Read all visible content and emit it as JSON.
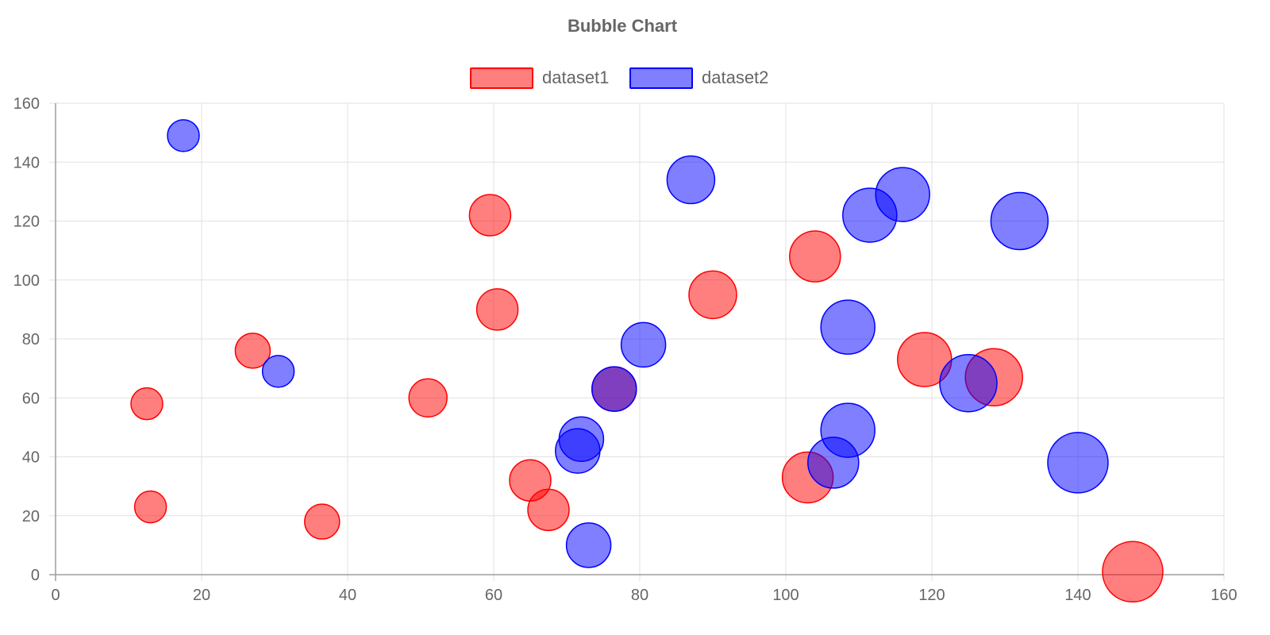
{
  "chart_data": {
    "type": "scatter",
    "variant": "bubble",
    "title": "Bubble Chart",
    "xlabel": "",
    "ylabel": "",
    "xlim": [
      0,
      160
    ],
    "ylim": [
      0,
      160
    ],
    "x_ticks": [
      "0",
      "20",
      "40",
      "60",
      "80",
      "100",
      "120",
      "140",
      "160"
    ],
    "y_ticks": [
      "0",
      "20",
      "40",
      "60",
      "80",
      "100",
      "120",
      "140",
      "160"
    ],
    "grid": true,
    "legend_position": "top",
    "series": [
      {
        "name": "dataset1",
        "fill": "rgba(255, 0, 0, 0.5)",
        "border": "#ff0000",
        "points": [
          {
            "x": 12.5,
            "y": 58,
            "r": 10
          },
          {
            "x": 13,
            "y": 23,
            "r": 10
          },
          {
            "x": 27,
            "y": 76,
            "r": 11
          },
          {
            "x": 36.5,
            "y": 18,
            "r": 11
          },
          {
            "x": 51,
            "y": 60,
            "r": 12
          },
          {
            "x": 59.5,
            "y": 122,
            "r": 13
          },
          {
            "x": 60.5,
            "y": 90,
            "r": 13
          },
          {
            "x": 65,
            "y": 32,
            "r": 13
          },
          {
            "x": 67.5,
            "y": 22,
            "r": 13
          },
          {
            "x": 76.5,
            "y": 63,
            "r": 14
          },
          {
            "x": 90,
            "y": 95,
            "r": 15
          },
          {
            "x": 103,
            "y": 33,
            "r": 16
          },
          {
            "x": 104,
            "y": 108,
            "r": 16
          },
          {
            "x": 119,
            "y": 73,
            "r": 17
          },
          {
            "x": 128.5,
            "y": 67,
            "r": 18
          },
          {
            "x": 147.5,
            "y": 1,
            "r": 19
          }
        ]
      },
      {
        "name": "dataset2",
        "fill": "rgba(0, 0, 255, 0.5)",
        "border": "#0000ff",
        "points": [
          {
            "x": 17.5,
            "y": 149,
            "r": 10
          },
          {
            "x": 30.5,
            "y": 69,
            "r": 10
          },
          {
            "x": 71.5,
            "y": 42,
            "r": 14
          },
          {
            "x": 72,
            "y": 46,
            "r": 14
          },
          {
            "x": 73,
            "y": 10,
            "r": 14
          },
          {
            "x": 76.5,
            "y": 63,
            "r": 14
          },
          {
            "x": 80.5,
            "y": 78,
            "r": 14
          },
          {
            "x": 87,
            "y": 134,
            "r": 15
          },
          {
            "x": 106.5,
            "y": 38,
            "r": 16
          },
          {
            "x": 108.5,
            "y": 84,
            "r": 17
          },
          {
            "x": 108.5,
            "y": 49,
            "r": 17
          },
          {
            "x": 111.5,
            "y": 122,
            "r": 17
          },
          {
            "x": 116,
            "y": 129,
            "r": 17
          },
          {
            "x": 125,
            "y": 65,
            "r": 18
          },
          {
            "x": 132,
            "y": 120,
            "r": 18
          },
          {
            "x": 140,
            "y": 38,
            "r": 19
          }
        ]
      }
    ]
  }
}
